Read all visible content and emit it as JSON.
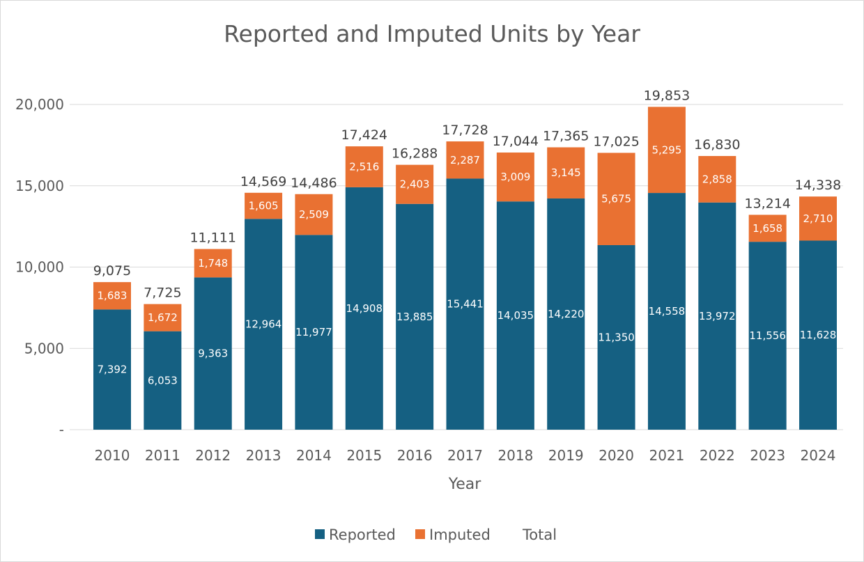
{
  "chart_data": {
    "type": "bar",
    "stacked": true,
    "title": "Reported and Imputed Units by Year",
    "xlabel": "Year",
    "ylabel": "",
    "ylim": [
      0,
      20000
    ],
    "yticks": [
      0,
      5000,
      10000,
      15000,
      20000
    ],
    "ytick_labels": [
      "-",
      "5,000",
      "10,000",
      "15,000",
      "20,000"
    ],
    "grid": true,
    "legend_position": "bottom",
    "categories": [
      "2010",
      "2011",
      "2012",
      "2013",
      "2014",
      "2015",
      "2016",
      "2017",
      "2018",
      "2019",
      "2020",
      "2021",
      "2022",
      "2023",
      "2024"
    ],
    "series": [
      {
        "name": "Reported",
        "color": "#156082",
        "values": [
          7392,
          6053,
          9363,
          12964,
          11977,
          14908,
          13885,
          15441,
          14035,
          14220,
          11350,
          14558,
          13972,
          11556,
          11628
        ]
      },
      {
        "name": "Imputed",
        "color": "#E97132",
        "values": [
          1683,
          1672,
          1748,
          1605,
          2509,
          2516,
          2403,
          2287,
          3009,
          3145,
          5675,
          5295,
          2858,
          1658,
          2710
        ]
      },
      {
        "name": "Total",
        "color": "none",
        "values": [
          9075,
          7725,
          11111,
          14569,
          14486,
          17424,
          16288,
          17728,
          17044,
          17365,
          17025,
          19853,
          16830,
          13214,
          14338
        ]
      }
    ]
  }
}
